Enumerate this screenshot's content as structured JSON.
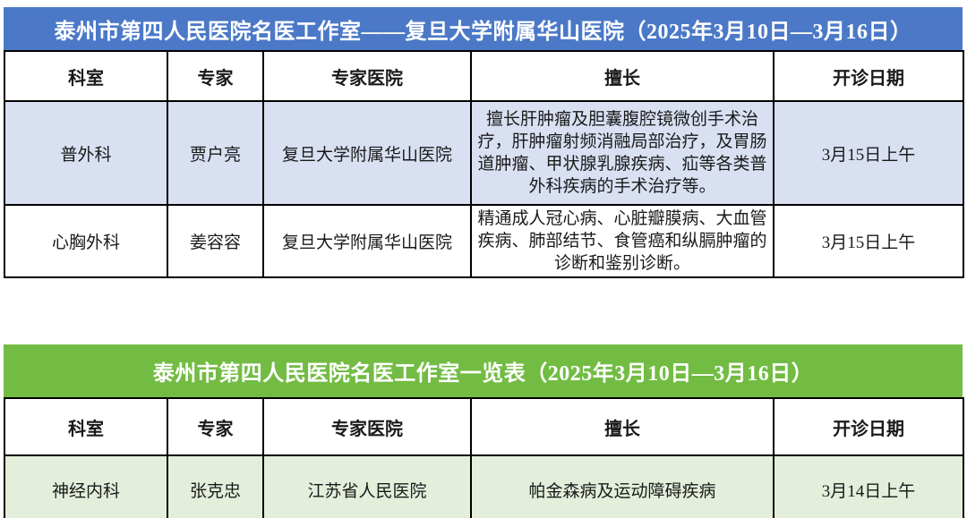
{
  "tables": [
    {
      "title": "泰州市第四人民医院名医工作室——复旦大学附属华山医院（2025年3月10日—3月16日）",
      "banner_color": "#4b79c7",
      "highlight_row_color": "#d9e0f2",
      "columns": [
        "科室",
        "专家",
        "专家医院",
        "擅长",
        "开诊日期"
      ],
      "rows": [
        {
          "department": "普外科",
          "expert": "贾户亮",
          "hospital": "复旦大学附属华山医院",
          "specialty": "擅长肝肿瘤及胆囊腹腔镜微创手术治疗，肝肿瘤射频消融局部治疗，及胃肠道肿瘤、甲状腺乳腺疾病、疝等各类普外科疾病的手术治疗等。",
          "date": "3月15日上午"
        },
        {
          "department": "心胸外科",
          "expert": "姜容容",
          "hospital": "复旦大学附属华山医院",
          "specialty": "精通成人冠心病、心脏瓣膜病、大血管疾病、肺部结节、食管癌和纵膈肿瘤的诊断和鉴别诊断。",
          "date": "3月15日上午"
        }
      ]
    },
    {
      "title": "泰州市第四人民医院名医工作室一览表（2025年3月10日—3月16日）",
      "banner_color": "#73bc44",
      "highlight_row_color": "#e3efdb",
      "columns": [
        "科室",
        "专家",
        "专家医院",
        "擅长",
        "开诊日期"
      ],
      "rows": [
        {
          "department": "神经内科",
          "expert": "张克忠",
          "hospital": "江苏省人民医院",
          "specialty": "帕金森病及运动障碍疾病",
          "date": "3月14日上午"
        }
      ]
    }
  ]
}
